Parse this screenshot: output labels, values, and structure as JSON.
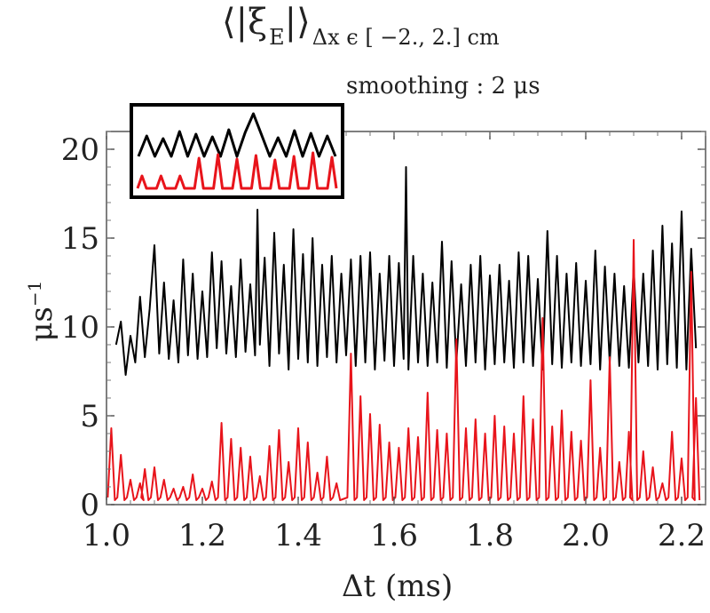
{
  "chart_data": {
    "type": "line",
    "title_main": "⟨|ξ",
    "title_sub_E": "E",
    "title_close": "|⟩",
    "title_subscript": "Δx ϵ [ −2., 2.] cm",
    "subtitle": "smoothing : 2 μs",
    "xlabel": "Δt (ms)",
    "ylabel": "μs",
    "ylabel_exp": "−1",
    "xlim": [
      1.0,
      2.25
    ],
    "ylim": [
      0,
      21
    ],
    "xticks": [
      "1.0",
      "1.2",
      "1.4",
      "1.6",
      "1.8",
      "2.0",
      "2.2"
    ],
    "xtick_values": [
      1.0,
      1.2,
      1.4,
      1.6,
      1.8,
      2.0,
      2.2
    ],
    "yticks": [
      "0",
      "5",
      "10",
      "15",
      "20"
    ],
    "ytick_values": [
      0,
      5,
      10,
      15,
      20
    ],
    "grid": false,
    "inset": true,
    "series": [
      {
        "color": "#000000",
        "peaks": [
          [
            1.03,
            10.3
          ],
          [
            1.05,
            9.5
          ],
          [
            1.07,
            11.7
          ],
          [
            1.09,
            11.0
          ],
          [
            1.1,
            14.6
          ],
          [
            1.12,
            12.5
          ],
          [
            1.14,
            11.5
          ],
          [
            1.16,
            13.8
          ],
          [
            1.18,
            13.0
          ],
          [
            1.2,
            12.0
          ],
          [
            1.22,
            14.2
          ],
          [
            1.24,
            13.7
          ],
          [
            1.26,
            12.3
          ],
          [
            1.28,
            13.8
          ],
          [
            1.3,
            12.4
          ],
          [
            1.315,
            16.6
          ],
          [
            1.33,
            13.9
          ],
          [
            1.35,
            15.3
          ],
          [
            1.37,
            13.5
          ],
          [
            1.39,
            15.5
          ],
          [
            1.41,
            14.1
          ],
          [
            1.43,
            15.0
          ],
          [
            1.45,
            13.5
          ],
          [
            1.47,
            14.0
          ],
          [
            1.49,
            13.0
          ],
          [
            1.51,
            13.8
          ],
          [
            1.53,
            14.0
          ],
          [
            1.55,
            14.2
          ],
          [
            1.57,
            13.0
          ],
          [
            1.59,
            14.0
          ],
          [
            1.61,
            13.6
          ],
          [
            1.625,
            19.0
          ],
          [
            1.64,
            14.0
          ],
          [
            1.66,
            13.0
          ],
          [
            1.68,
            12.5
          ],
          [
            1.7,
            14.8
          ],
          [
            1.72,
            13.7
          ],
          [
            1.74,
            12.4
          ],
          [
            1.76,
            13.5
          ],
          [
            1.78,
            14.0
          ],
          [
            1.8,
            12.9
          ],
          [
            1.82,
            13.5
          ],
          [
            1.84,
            12.6
          ],
          [
            1.86,
            14.2
          ],
          [
            1.88,
            14.0
          ],
          [
            1.9,
            12.7
          ],
          [
            1.92,
            15.4
          ],
          [
            1.94,
            14.0
          ],
          [
            1.96,
            13.0
          ],
          [
            1.98,
            13.6
          ],
          [
            2.0,
            12.6
          ],
          [
            2.02,
            14.3
          ],
          [
            2.04,
            13.4
          ],
          [
            2.06,
            13.0
          ],
          [
            2.08,
            12.3
          ],
          [
            2.1,
            13.3
          ],
          [
            2.12,
            13.0
          ],
          [
            2.14,
            14.3
          ],
          [
            2.16,
            15.7
          ],
          [
            2.18,
            14.7
          ],
          [
            2.2,
            16.5
          ],
          [
            2.22,
            14.4
          ]
        ],
        "troughs": [
          [
            1.02,
            9.0
          ],
          [
            1.04,
            7.3
          ],
          [
            1.06,
            8.0
          ],
          [
            1.08,
            8.3
          ],
          [
            1.11,
            8.5
          ],
          [
            1.13,
            8.2
          ],
          [
            1.15,
            8.0
          ],
          [
            1.17,
            8.4
          ],
          [
            1.19,
            8.2
          ],
          [
            1.21,
            8.3
          ],
          [
            1.23,
            8.8
          ],
          [
            1.25,
            8.5
          ],
          [
            1.27,
            8.3
          ],
          [
            1.29,
            8.6
          ],
          [
            1.31,
            8.4
          ],
          [
            1.32,
            9.0
          ],
          [
            1.34,
            7.8
          ],
          [
            1.36,
            8.5
          ],
          [
            1.38,
            7.6
          ],
          [
            1.4,
            8.2
          ],
          [
            1.42,
            8.0
          ],
          [
            1.44,
            7.8
          ],
          [
            1.46,
            8.3
          ],
          [
            1.48,
            8.0
          ],
          [
            1.5,
            8.4
          ],
          [
            1.52,
            7.8
          ],
          [
            1.54,
            8.0
          ],
          [
            1.56,
            7.6
          ],
          [
            1.58,
            8.1
          ],
          [
            1.6,
            7.8
          ],
          [
            1.62,
            8.2
          ],
          [
            1.63,
            7.6
          ],
          [
            1.65,
            8.0
          ],
          [
            1.67,
            7.8
          ],
          [
            1.69,
            8.0
          ],
          [
            1.71,
            7.7
          ],
          [
            1.73,
            8.0
          ],
          [
            1.75,
            7.8
          ],
          [
            1.77,
            8.0
          ],
          [
            1.79,
            7.6
          ],
          [
            1.81,
            7.9
          ],
          [
            1.83,
            8.0
          ],
          [
            1.85,
            7.7
          ],
          [
            1.87,
            8.0
          ],
          [
            1.89,
            7.8
          ],
          [
            1.91,
            7.6
          ],
          [
            1.93,
            7.9
          ],
          [
            1.95,
            7.7
          ],
          [
            1.97,
            8.0
          ],
          [
            1.99,
            7.8
          ],
          [
            2.01,
            7.9
          ],
          [
            2.03,
            7.6
          ],
          [
            2.05,
            8.0
          ],
          [
            2.07,
            7.8
          ],
          [
            2.09,
            7.7
          ],
          [
            2.11,
            8.0
          ],
          [
            2.13,
            7.8
          ],
          [
            2.15,
            7.6
          ],
          [
            2.17,
            7.9
          ],
          [
            2.19,
            7.7
          ],
          [
            2.21,
            7.6
          ],
          [
            2.23,
            8.8
          ]
        ]
      },
      {
        "color": "#e8141b",
        "spikes": [
          [
            1.01,
            4.3
          ],
          [
            1.03,
            2.8
          ],
          [
            1.05,
            1.4
          ],
          [
            1.07,
            1.2
          ],
          [
            1.08,
            2.0
          ],
          [
            1.1,
            2.1
          ],
          [
            1.12,
            1.4
          ],
          [
            1.14,
            0.9
          ],
          [
            1.16,
            1.0
          ],
          [
            1.18,
            1.7
          ],
          [
            1.2,
            0.9
          ],
          [
            1.22,
            1.3
          ],
          [
            1.24,
            4.6
          ],
          [
            1.26,
            3.7
          ],
          [
            1.28,
            3.2
          ],
          [
            1.3,
            2.7
          ],
          [
            1.32,
            1.6
          ],
          [
            1.34,
            3.3
          ],
          [
            1.36,
            4.2
          ],
          [
            1.38,
            2.4
          ],
          [
            1.4,
            4.3
          ],
          [
            1.42,
            3.5
          ],
          [
            1.44,
            1.8
          ],
          [
            1.46,
            2.7
          ],
          [
            1.48,
            1.2
          ],
          [
            1.51,
            8.5
          ],
          [
            1.53,
            6.1
          ],
          [
            1.55,
            5.1
          ],
          [
            1.57,
            4.5
          ],
          [
            1.59,
            3.5
          ],
          [
            1.61,
            3.2
          ],
          [
            1.63,
            4.3
          ],
          [
            1.65,
            3.8
          ],
          [
            1.67,
            6.3
          ],
          [
            1.69,
            4.2
          ],
          [
            1.71,
            4.0
          ],
          [
            1.73,
            9.3
          ],
          [
            1.75,
            4.3
          ],
          [
            1.77,
            4.8
          ],
          [
            1.79,
            4.0
          ],
          [
            1.81,
            5.0
          ],
          [
            1.83,
            4.4
          ],
          [
            1.85,
            4.0
          ],
          [
            1.87,
            6.1
          ],
          [
            1.89,
            4.8
          ],
          [
            1.91,
            10.5
          ],
          [
            1.93,
            4.4
          ],
          [
            1.95,
            5.3
          ],
          [
            1.97,
            4.1
          ],
          [
            1.99,
            3.6
          ],
          [
            2.01,
            7.0
          ],
          [
            2.03,
            3.2
          ],
          [
            2.05,
            8.3
          ],
          [
            2.07,
            2.4
          ],
          [
            2.09,
            4.1
          ],
          [
            2.1,
            14.9
          ],
          [
            2.12,
            3.0
          ],
          [
            2.14,
            2.1
          ],
          [
            2.16,
            1.2
          ],
          [
            2.18,
            4.1
          ],
          [
            2.2,
            2.6
          ],
          [
            2.22,
            13.1
          ],
          [
            2.23,
            6.0
          ]
        ],
        "baseline": 0.25
      }
    ]
  }
}
